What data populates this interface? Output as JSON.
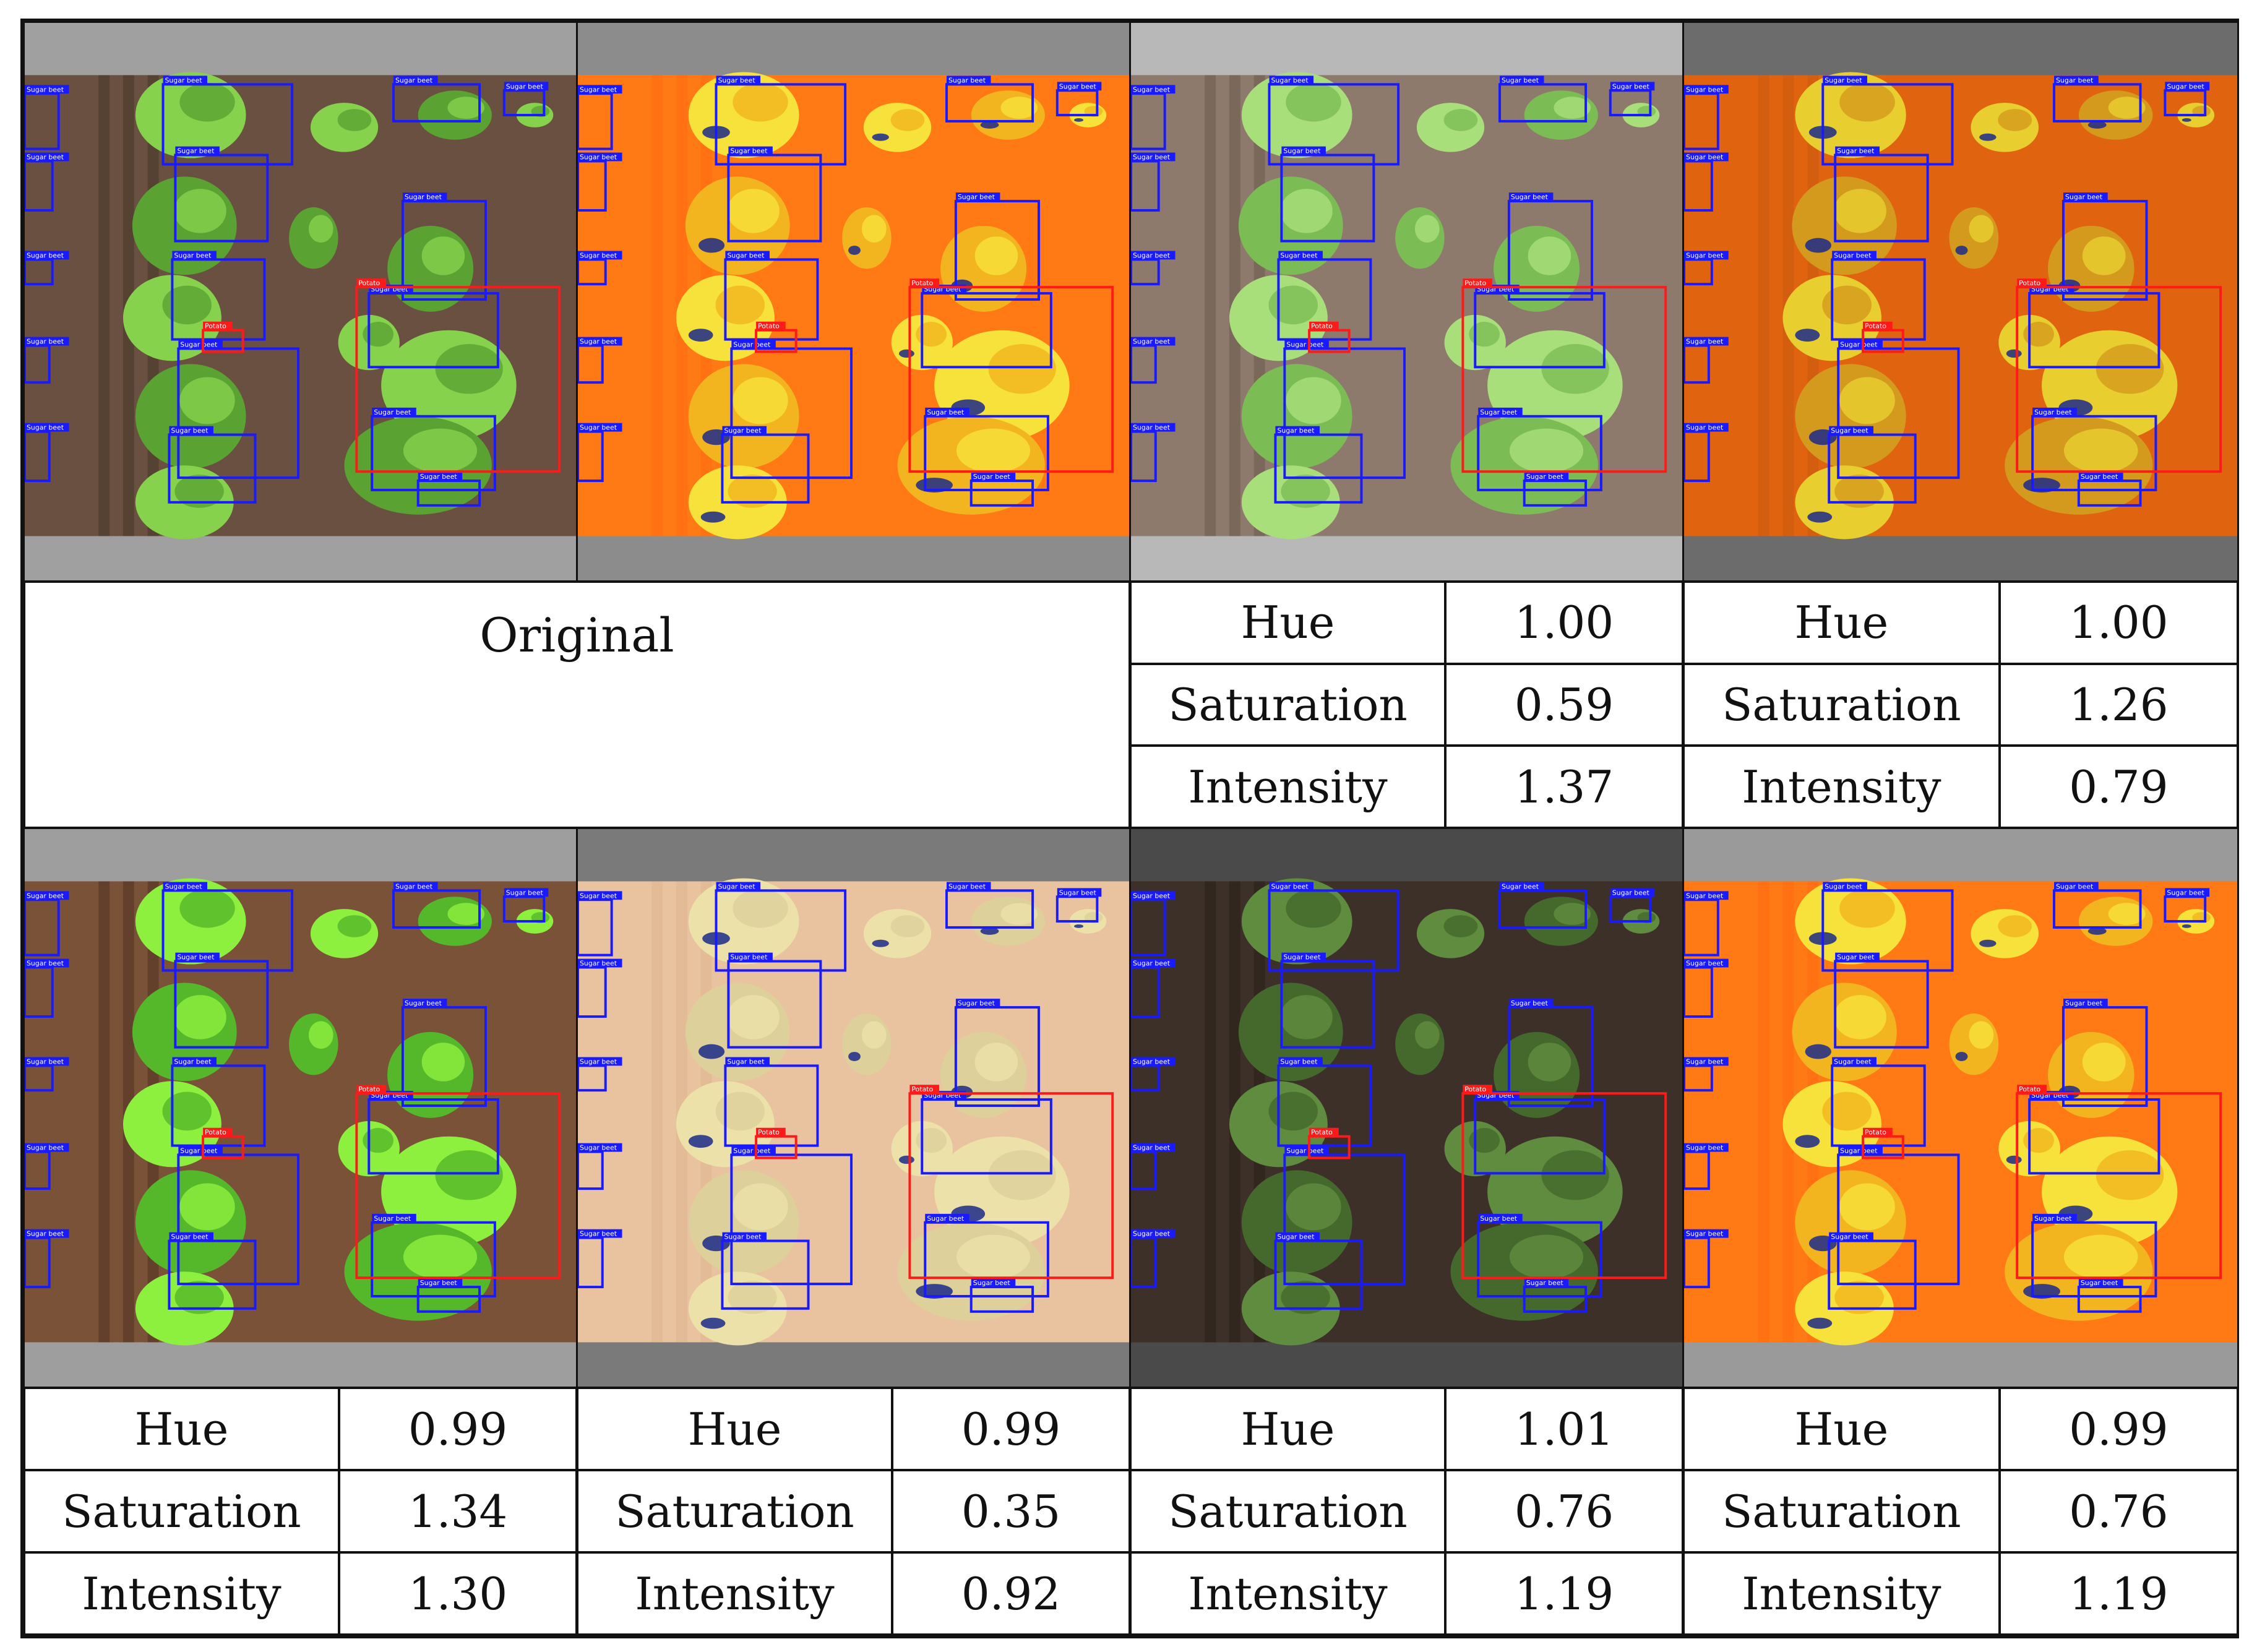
{
  "caption": "Original",
  "box_labels": {
    "sugar_beet": "Sugar beet",
    "potato": "Potato"
  },
  "colors": {
    "sugar_beet_box": "#1a1aff",
    "potato_box": "#ff1a1a",
    "soil": "#6e5442",
    "leaf": "#7fd146",
    "hsi_orange": "#ff7a14",
    "hsi_yellow": "#f6e23a",
    "hsi_blue": "#1b2a8a",
    "pad_grey": "#9a9a9a"
  },
  "top_row": {
    "panels": [
      {
        "name": "original-rgb",
        "style": "rgb",
        "pad": "#a0a0a0"
      },
      {
        "name": "original-hsi",
        "style": "hsi",
        "pad": "#8c8c8c"
      },
      {
        "name": "variant-1-rgb",
        "style": "rgb-light",
        "pad": "#b8b8b8"
      },
      {
        "name": "variant-2-hsi",
        "style": "hsi-dark",
        "pad": "#6c6c6c"
      }
    ],
    "tables": [
      {
        "hue_label": "Hue",
        "hue": "1.00",
        "saturation_label": "Saturation",
        "saturation": "0.59",
        "intensity_label": "Intensity",
        "intensity": "1.37"
      },
      {
        "hue_label": "Hue",
        "hue": "1.00",
        "saturation_label": "Saturation",
        "saturation": "1.26",
        "intensity_label": "Intensity",
        "intensity": "0.79"
      }
    ]
  },
  "bottom_row": {
    "panels": [
      {
        "name": "variant-3-rgb",
        "style": "rgb-bright",
        "pad": "#9e9e9e"
      },
      {
        "name": "variant-4-hsi",
        "style": "hsi-pale",
        "pad": "#7a7a7a"
      },
      {
        "name": "variant-5-rgb",
        "style": "rgb-dark",
        "pad": "#4a4a4a"
      },
      {
        "name": "variant-6-hsi",
        "style": "hsi",
        "pad": "#9a9a9a"
      }
    ],
    "tables": [
      {
        "hue_label": "Hue",
        "hue": "0.99",
        "saturation_label": "Saturation",
        "saturation": "1.34",
        "intensity_label": "Intensity",
        "intensity": "1.30"
      },
      {
        "hue_label": "Hue",
        "hue": "0.99",
        "saturation_label": "Saturation",
        "saturation": "0.35",
        "intensity_label": "Intensity",
        "intensity": "0.92"
      },
      {
        "hue_label": "Hue",
        "hue": "1.01",
        "saturation_label": "Saturation",
        "saturation": "0.76",
        "intensity_label": "Intensity",
        "intensity": "1.19"
      },
      {
        "hue_label": "Hue",
        "hue": "0.99",
        "saturation_label": "Saturation",
        "saturation": "0.76",
        "intensity_label": "Intensity",
        "intensity": "1.19"
      }
    ]
  }
}
